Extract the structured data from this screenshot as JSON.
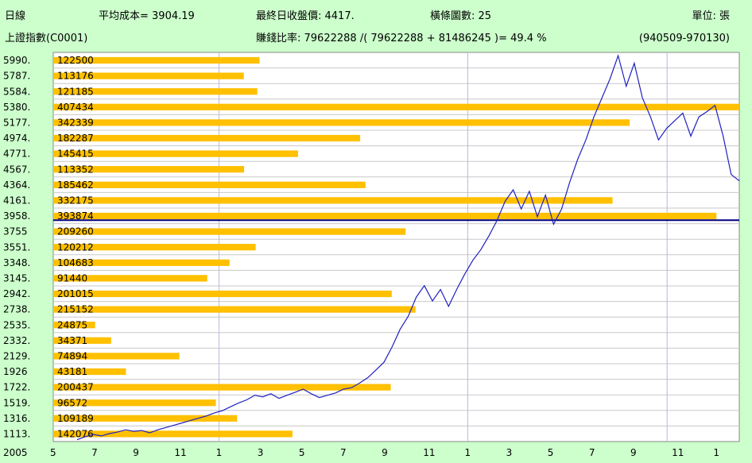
{
  "header": {
    "period": "日線",
    "avg_cost": "平均成本= 3904.19",
    "last_price": "最終日收盤價: 4417.",
    "bar_count": "橫條圖數: 25",
    "unit": "單位: 張",
    "index_name": "上證指數(C0001)",
    "ratio": "賺錢比率: 79622288 /( 79622288 + 81486245 )= 49.4 %",
    "range": "(940509-970130)"
  },
  "colors": {
    "background": "#ccffcc",
    "bar": "#ffc000",
    "line": "#2020c0",
    "grid": "#c8c8c8",
    "cost_line": "#000080"
  },
  "chart_data": {
    "type": "line",
    "price_ticks": [
      5990,
      5787,
      5584,
      5380,
      5177,
      4974,
      4771,
      4567,
      4364,
      4161,
      3958,
      3755,
      3551,
      3348,
      3145,
      2942,
      2738,
      2535,
      2332,
      2129,
      1926,
      1722,
      1519,
      1316,
      1113
    ],
    "price_tick_labels": [
      "5990.",
      "5787.",
      "5584.",
      "5380.",
      "5177.",
      "4974.",
      "4771.",
      "4567.",
      "4364.",
      "4161.",
      "3958.",
      "3755",
      "3551.",
      "3348.",
      "3145.",
      "2942.",
      "2738.",
      "2535.",
      "2332.",
      "2129.",
      "1926",
      "1722.",
      "1519.",
      "1316.",
      "1113."
    ],
    "volume_bars": [
      {
        "price": 5990,
        "volume": 122500
      },
      {
        "price": 5787,
        "volume": 113176
      },
      {
        "price": 5584,
        "volume": 121185
      },
      {
        "price": 5380,
        "volume": 407434
      },
      {
        "price": 5177,
        "volume": 342339
      },
      {
        "price": 4974,
        "volume": 182287
      },
      {
        "price": 4771,
        "volume": 145415
      },
      {
        "price": 4567,
        "volume": 113352
      },
      {
        "price": 4364,
        "volume": 185462
      },
      {
        "price": 4161,
        "volume": 332175
      },
      {
        "price": 3958,
        "volume": 393874
      },
      {
        "price": 3755,
        "volume": 209260
      },
      {
        "price": 3551,
        "volume": 120212
      },
      {
        "price": 3348,
        "volume": 104683
      },
      {
        "price": 3145,
        "volume": 91440
      },
      {
        "price": 2942,
        "volume": 201015
      },
      {
        "price": 2738,
        "volume": 215152
      },
      {
        "price": 2535,
        "volume": 24875
      },
      {
        "price": 2332,
        "volume": 34371
      },
      {
        "price": 2129,
        "volume": 74894
      },
      {
        "price": 1926,
        "volume": 43181
      },
      {
        "price": 1722,
        "volume": 200437
      },
      {
        "price": 1519,
        "volume": 96572
      },
      {
        "price": 1316,
        "volume": 109189
      },
      {
        "price": 1113,
        "volume": 142076
      }
    ],
    "avg_cost": 3904.19,
    "x_labels": [
      "2005",
      "5",
      "7",
      "9",
      "11",
      "1",
      "3",
      "5",
      "7",
      "9",
      "11",
      "1",
      "3",
      "5",
      "7",
      "9",
      "11",
      "1"
    ],
    "series": [
      {
        "values": [
          1040,
          1080,
          1110,
          1090,
          1120,
          1140,
          1170,
          1150,
          1160,
          1130,
          1170,
          1200,
          1230,
          1260,
          1290,
          1320,
          1350,
          1390,
          1420,
          1470,
          1520,
          1560,
          1620,
          1600,
          1640,
          1580,
          1620,
          1660,
          1700,
          1640,
          1590,
          1620,
          1650,
          1700,
          1720,
          1780,
          1850,
          1950,
          2050,
          2250,
          2480,
          2650,
          2900,
          3050,
          2850,
          3000,
          2780,
          3000,
          3200,
          3380,
          3520,
          3700,
          3900,
          4150,
          4300,
          4050,
          4280,
          3950,
          4230,
          3850,
          4050,
          4400,
          4700,
          4950,
          5250,
          5500,
          5750,
          6050,
          5650,
          5950,
          5500,
          5250,
          4950,
          5100,
          5200,
          5300,
          5000,
          5250,
          5320,
          5400,
          5000,
          4500,
          4417
        ]
      }
    ]
  }
}
